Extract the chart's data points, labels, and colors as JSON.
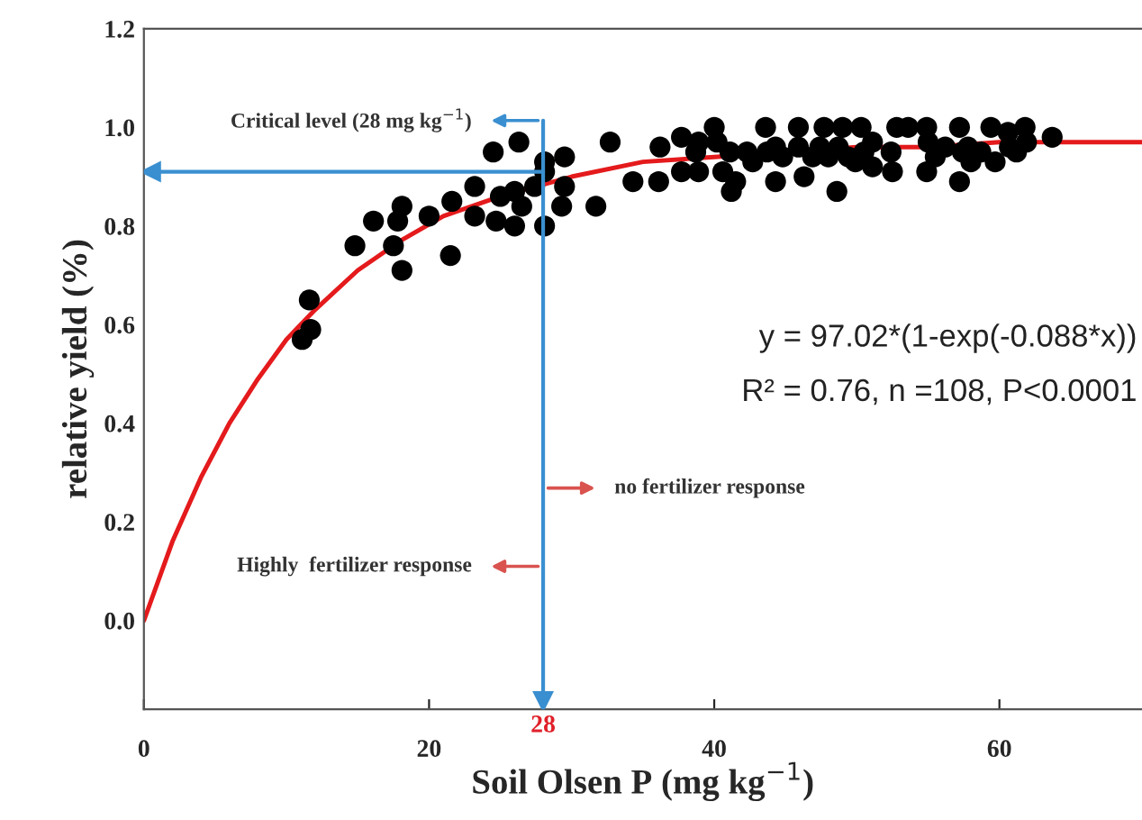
{
  "chart_data": {
    "type": "scatter",
    "xlabel": "Soil Olsen P (mg kg$^{−1}$)",
    "ylabel": "relative yield (%)",
    "xlim": [
      0,
      70
    ],
    "ylim": [
      -0.18,
      1.2
    ],
    "xticks": [
      0,
      20,
      40,
      60
    ],
    "yticks": [
      {
        "value": 0,
        "label": "0.0"
      },
      {
        "value": 0.2,
        "label": "0.2"
      },
      {
        "value": 0.4,
        "label": "0.4"
      },
      {
        "value": 0.6,
        "label": "0.6"
      },
      {
        "value": 0.8,
        "label": "0.8"
      },
      {
        "value": 1.0,
        "label": "1.0"
      },
      {
        "value": 1.2,
        "label": "1.2"
      }
    ],
    "grid": false,
    "marker": "circle",
    "series": [
      {
        "color": "#000000",
        "x": [
          11.1,
          11.6,
          11.7,
          14.8,
          16.1,
          17.5,
          17.8,
          18.1,
          18.1,
          20.0,
          21.5,
          21.6,
          23.2,
          23.2,
          24.5,
          24.7,
          25.0,
          26.0,
          26.0,
          26.3,
          26.5,
          27.4,
          28.1,
          28.1,
          28.1,
          29.3,
          29.5,
          29.5,
          31.7,
          32.7,
          34.3,
          36.1,
          36.2,
          37.7,
          37.7,
          38.7,
          38.9,
          40.0,
          40.2,
          41.1,
          41.2,
          41.5,
          42.7,
          43.6,
          43.7,
          44.3,
          44.3,
          44.8,
          45.9,
          45.9,
          46.3,
          46.9,
          47.7,
          48.0,
          48.6,
          48.7,
          49.0,
          49.4,
          49.9,
          50.3,
          50.5,
          51.1,
          52.4,
          52.5,
          52.8,
          53.6,
          54.9,
          54.9,
          55.0,
          55.5,
          57.2,
          57.2,
          57.4,
          57.8,
          58.0,
          58.7,
          59.4,
          59.7,
          60.7,
          61.2,
          61.8,
          61.9,
          63.7,
          38.9,
          40.6,
          42.3,
          47.4,
          51.1,
          56.2,
          60.6
        ],
        "values": [
          0.57,
          0.65,
          0.59,
          0.76,
          0.81,
          0.76,
          0.81,
          0.84,
          0.71,
          0.82,
          0.74,
          0.85,
          0.88,
          0.82,
          0.95,
          0.81,
          0.86,
          0.8,
          0.87,
          0.97,
          0.84,
          0.88,
          0.8,
          0.91,
          0.93,
          0.84,
          0.94,
          0.88,
          0.84,
          0.97,
          0.89,
          0.89,
          0.96,
          0.98,
          0.91,
          0.95,
          0.91,
          1.0,
          0.97,
          0.95,
          0.87,
          0.89,
          0.93,
          1.0,
          0.95,
          0.96,
          0.89,
          0.94,
          1.0,
          0.96,
          0.9,
          0.94,
          1.0,
          0.94,
          0.87,
          0.96,
          1.0,
          0.94,
          0.93,
          1.0,
          0.95,
          0.92,
          0.95,
          0.91,
          1.0,
          1.0,
          1.0,
          0.91,
          0.97,
          0.94,
          1.0,
          0.89,
          0.95,
          0.96,
          0.93,
          0.95,
          1.0,
          0.93,
          0.96,
          0.95,
          1.0,
          0.97,
          0.98,
          0.97,
          0.91,
          0.95,
          0.96,
          0.97,
          0.96,
          0.99
        ]
      },
      {
        "type": "line",
        "color": "#e41a1c",
        "marker": "none",
        "x": [
          0,
          2,
          4,
          6,
          8,
          10,
          12,
          15,
          18,
          21,
          25,
          30,
          35,
          40,
          45,
          50,
          55,
          60,
          65,
          70
        ],
        "values": [
          0.0,
          0.16,
          0.29,
          0.4,
          0.49,
          0.57,
          0.63,
          0.71,
          0.77,
          0.82,
          0.86,
          0.9,
          0.93,
          0.94,
          0.95,
          0.96,
          0.96,
          0.97,
          0.97,
          0.97
        ]
      }
    ],
    "ref_lines": [
      {
        "axis": "x",
        "value": 28,
        "label": "28",
        "color": "#3a8fd0"
      },
      {
        "axis": "y",
        "value": 0.91,
        "color": "#3a8fd0"
      }
    ],
    "annotations": [
      "Critical level (28 mg kg$^{−1}$)",
      "no fertilizer response",
      "Highly  fertilizer response",
      "y = 97.02*(1-exp(-0.088*x))",
      "R² = 0.76, n =108, P<0.0001"
    ]
  }
}
